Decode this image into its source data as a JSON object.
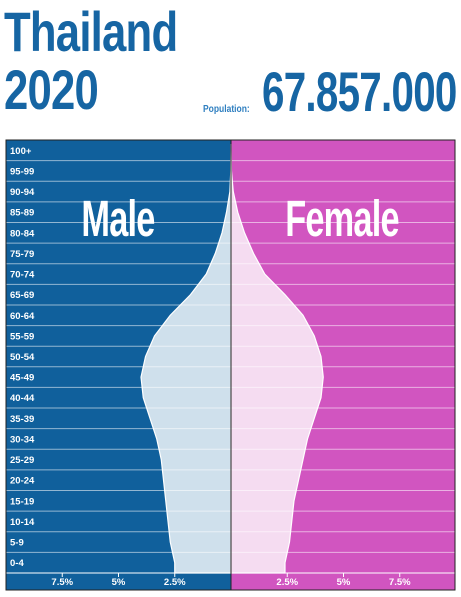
{
  "header": {
    "country": "Thailand",
    "year": "2020",
    "population_label": "Population:",
    "population_value": "67.857.000"
  },
  "colors": {
    "title": "#1665a3",
    "male_bg": "#10609c",
    "female_bg": "#d155c0",
    "male_fill": "#cfe0ec",
    "female_fill": "#f5dcf1",
    "grid": "#ffffff"
  },
  "chart_data": {
    "type": "area",
    "subtype": "population-pyramid",
    "series": [
      {
        "name": "Male",
        "values": [
          2.5,
          2.7,
          2.8,
          2.9,
          3.0,
          3.1,
          3.3,
          3.6,
          3.9,
          4.0,
          3.8,
          3.4,
          2.7,
          1.8,
          1.1,
          0.7,
          0.4,
          0.2,
          0.05,
          0.01,
          0.0
        ]
      },
      {
        "name": "Female",
        "values": [
          2.4,
          2.6,
          2.7,
          2.8,
          3.0,
          3.2,
          3.4,
          3.7,
          4.0,
          4.1,
          4.0,
          3.7,
          3.2,
          2.4,
          1.5,
          1.0,
          0.6,
          0.3,
          0.1,
          0.02,
          0.0
        ]
      }
    ],
    "categories": [
      "0-4",
      "5-9",
      "10-14",
      "15-19",
      "20-24",
      "25-29",
      "30-34",
      "35-39",
      "40-44",
      "45-49",
      "50-54",
      "55-59",
      "60-64",
      "65-69",
      "70-74",
      "75-79",
      "80-84",
      "85-89",
      "90-94",
      "95-99",
      "100+"
    ],
    "x_ticks_male": [
      "7.5%",
      "5%",
      "2.5%"
    ],
    "x_ticks_female": [
      "2.5%",
      "5%",
      "7.5%"
    ],
    "x_tick_values": [
      7.5,
      5,
      2.5
    ],
    "xlim": [
      -10,
      10
    ],
    "grid": true
  }
}
